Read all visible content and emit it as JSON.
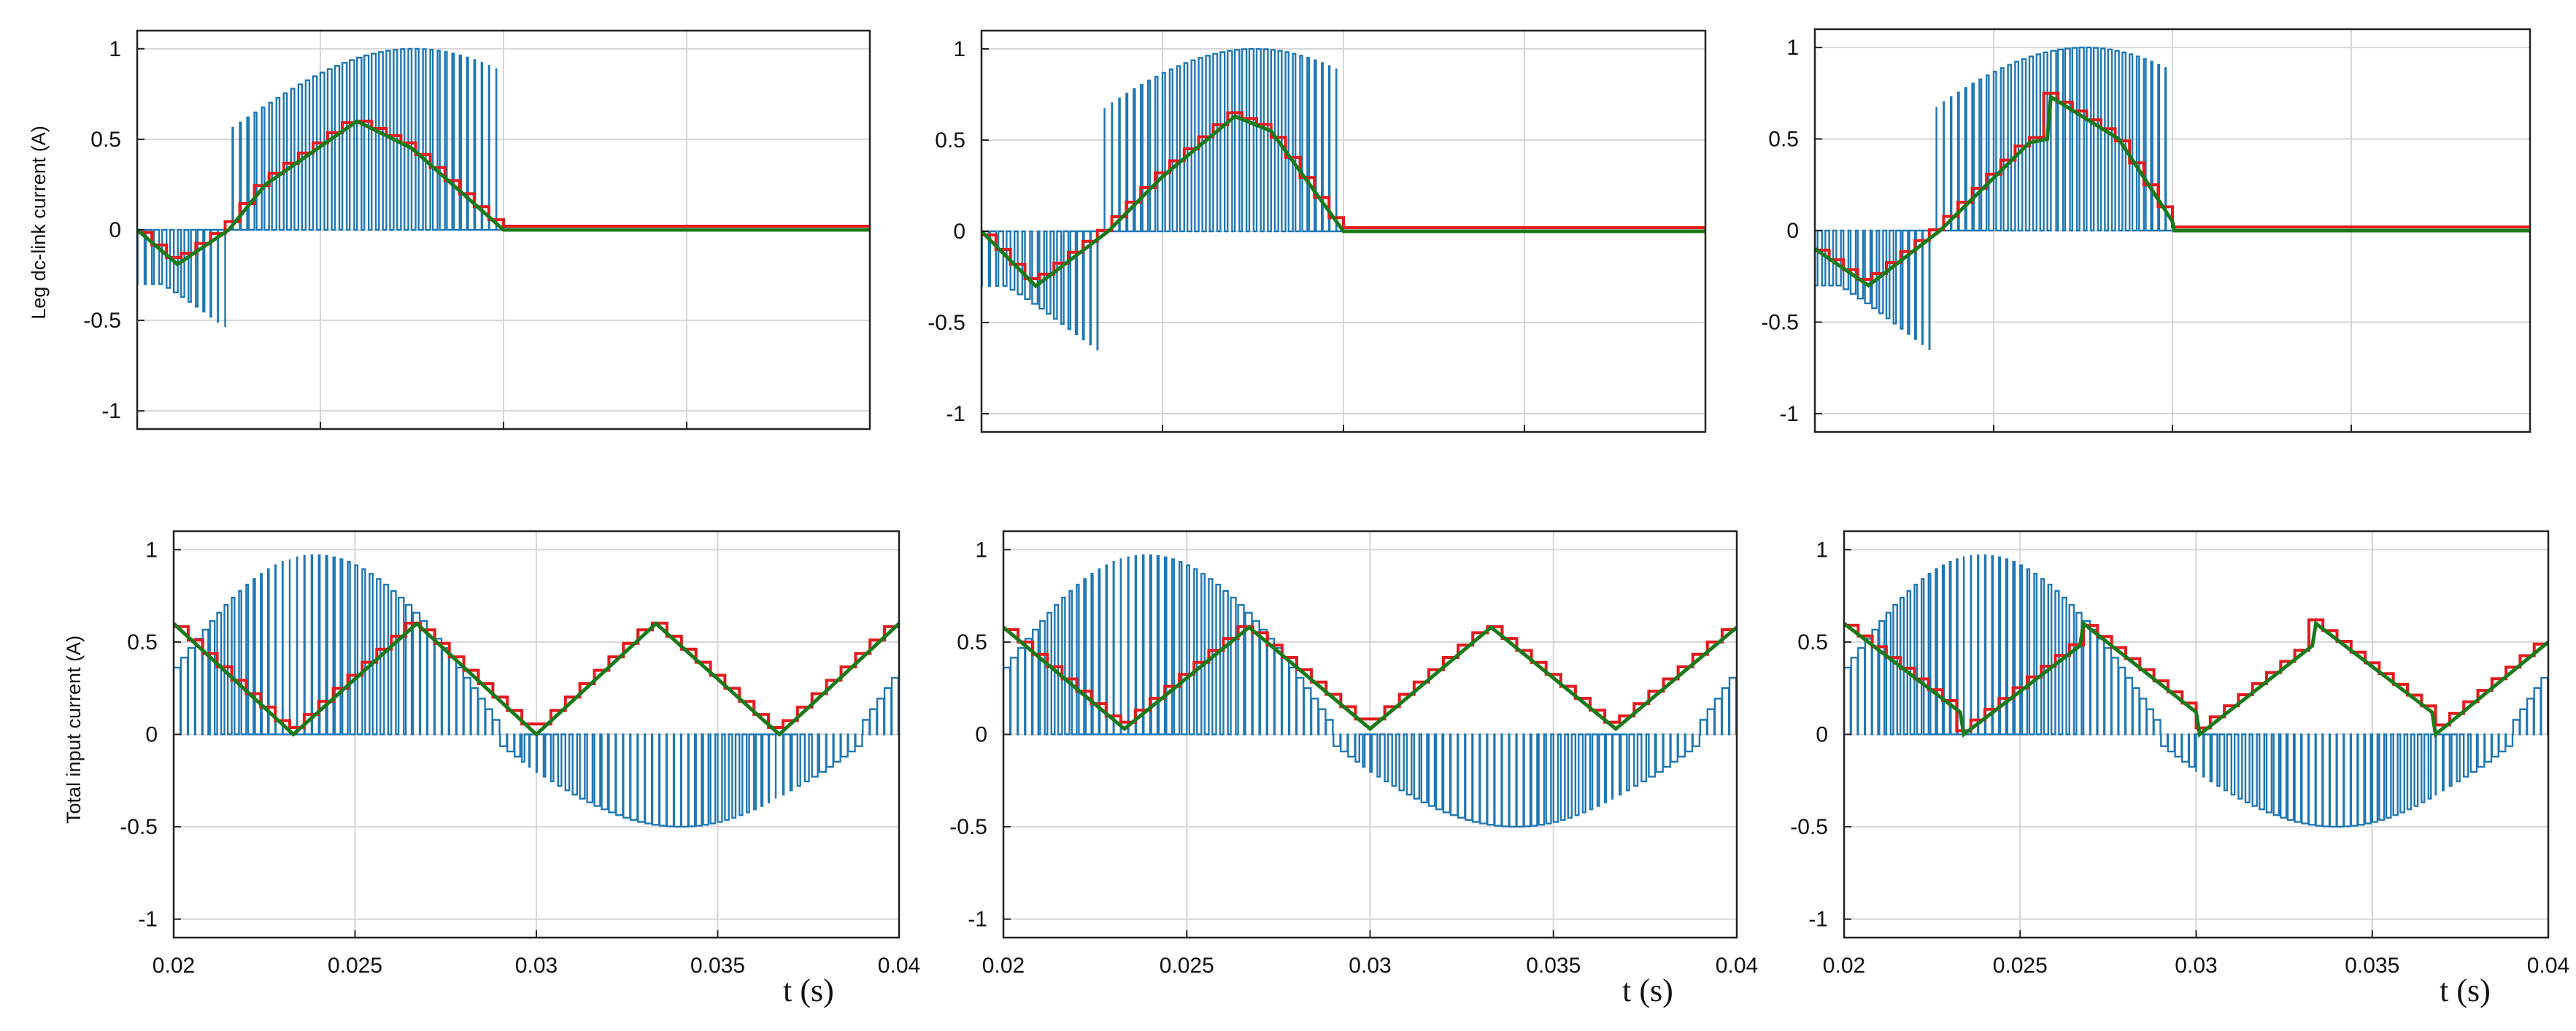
{
  "figure": {
    "row_labels": [
      "Leg dc-link current (A)",
      "Total input current (A)"
    ],
    "x_label": "t (s)",
    "colors": {
      "pwm": "#1f77b4",
      "sampled": "#e41a1c",
      "average": "#1a7a1a",
      "grid": "#d6d6d6",
      "frame": "#222222"
    }
  },
  "chart_data": [
    {
      "type": "line",
      "row": 0,
      "col": 0,
      "xlim": [
        0.02,
        0.04
      ],
      "ylim": [
        -1.1,
        1.1
      ],
      "yticks": [
        "1",
        "0.5",
        "0",
        "-0.5",
        "-1"
      ],
      "xticks": [],
      "grid": true,
      "kind": "leg",
      "avg": [
        [
          0.02,
          0
        ],
        [
          0.0211,
          -0.19
        ],
        [
          0.0225,
          0
        ],
        [
          0.0235,
          0.25
        ],
        [
          0.026,
          0.6
        ],
        [
          0.0275,
          0.45
        ],
        [
          0.03,
          0
        ]
      ]
    },
    {
      "type": "line",
      "row": 0,
      "col": 1,
      "xlim": [
        0.02,
        0.04
      ],
      "ylim": [
        -1.1,
        1.1
      ],
      "yticks": [
        "1",
        "0.5",
        "0",
        "-0.5",
        "-1"
      ],
      "xticks": [],
      "grid": true,
      "kind": "leg",
      "avg": [
        [
          0.02,
          0
        ],
        [
          0.0215,
          -0.3
        ],
        [
          0.0235,
          0
        ],
        [
          0.025,
          0.3
        ],
        [
          0.027,
          0.63
        ],
        [
          0.028,
          0.55
        ],
        [
          0.03,
          0
        ]
      ]
    },
    {
      "type": "line",
      "row": 0,
      "col": 2,
      "xlim": [
        0.02,
        0.04
      ],
      "ylim": [
        -1.1,
        1.1
      ],
      "yticks": [
        "1",
        "0.5",
        "0",
        "-0.5",
        "-1"
      ],
      "xticks": [],
      "grid": true,
      "kind": "leg",
      "avg": [
        [
          0.02,
          -0.1
        ],
        [
          0.0215,
          -0.3
        ],
        [
          0.0235,
          0
        ],
        [
          0.026,
          0.48
        ],
        [
          0.0265,
          0.5
        ],
        [
          0.0266,
          0.73
        ],
        [
          0.0285,
          0.5
        ],
        [
          0.03,
          0.05
        ],
        [
          0.030001,
          0
        ]
      ]
    },
    {
      "type": "line",
      "row": 1,
      "col": 0,
      "xlim": [
        0.02,
        0.04
      ],
      "ylim": [
        -1.1,
        1.1
      ],
      "yticks": [
        "1",
        "0.5",
        "0",
        "-0.5",
        "-1"
      ],
      "xticks": [
        "0.02",
        "0.025",
        "0.03",
        "0.035",
        "0.04"
      ],
      "grid": true,
      "kind": "input",
      "avg": [
        [
          0.02,
          0.6
        ],
        [
          0.0233,
          0
        ],
        [
          0.0267,
          0.6
        ],
        [
          0.03,
          0
        ],
        [
          0.0333,
          0.6
        ],
        [
          0.0367,
          0
        ],
        [
          0.04,
          0.6
        ]
      ]
    },
    {
      "type": "line",
      "row": 1,
      "col": 1,
      "xlim": [
        0.02,
        0.04
      ],
      "ylim": [
        -1.1,
        1.1
      ],
      "yticks": [
        "1",
        "0.5",
        "0",
        "-0.5",
        "-1"
      ],
      "xticks": [
        "0.02",
        "0.025",
        "0.03",
        "0.035",
        "0.04"
      ],
      "grid": true,
      "kind": "input",
      "avg": [
        [
          0.02,
          0.58
        ],
        [
          0.0233,
          0.03
        ],
        [
          0.0267,
          0.58
        ],
        [
          0.03,
          0.03
        ],
        [
          0.0333,
          0.58
        ],
        [
          0.0367,
          0.03
        ],
        [
          0.04,
          0.58
        ]
      ]
    },
    {
      "type": "line",
      "row": 1,
      "col": 2,
      "xlim": [
        0.02,
        0.04
      ],
      "ylim": [
        -1.1,
        1.1
      ],
      "yticks": [
        "1",
        "0.5",
        "0",
        "-0.5",
        "-1"
      ],
      "xticks": [
        "0.02",
        "0.025",
        "0.03",
        "0.035",
        "0.04"
      ],
      "grid": true,
      "kind": "input",
      "avg": [
        [
          0.02,
          0.6
        ],
        [
          0.0233,
          0.12
        ],
        [
          0.0234,
          0.0
        ],
        [
          0.0267,
          0.48
        ],
        [
          0.0268,
          0.6
        ],
        [
          0.03,
          0.12
        ],
        [
          0.0301,
          0.0
        ],
        [
          0.0333,
          0.48
        ],
        [
          0.0334,
          0.6
        ],
        [
          0.0367,
          0.12
        ],
        [
          0.0368,
          0.0
        ],
        [
          0.04,
          0.5
        ]
      ]
    }
  ]
}
